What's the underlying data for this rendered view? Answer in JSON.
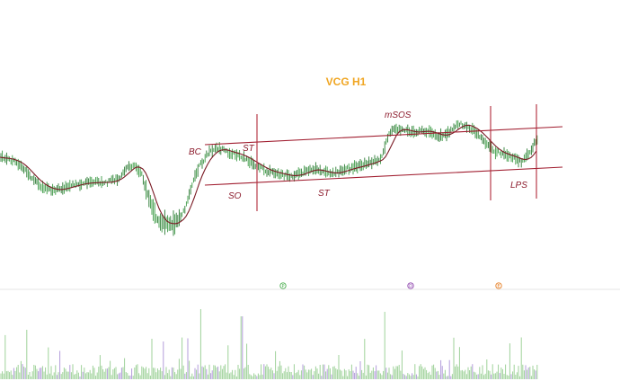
{
  "chart_data": {
    "type": "line",
    "title": "VCG H1",
    "xlabel": "",
    "ylabel": "",
    "grid": false,
    "colors": {
      "title": "#f0a623",
      "up_bar": "#3c9a45",
      "down_bar": "#2b7a33",
      "moving_average": "#7a1a24",
      "channel": "#a01c2e",
      "vertical_marker": "#b0283a",
      "annotation": "#8b1a2b",
      "volume_up": "#9fd29a",
      "volume_down": "#b39ddb",
      "separator": "#e6e6e6"
    },
    "annotations": [
      {
        "label": "BC"
      },
      {
        "label": "ST"
      },
      {
        "label": "SO"
      },
      {
        "label": "ST"
      },
      {
        "label": "mSOS"
      },
      {
        "label": "LPS"
      }
    ],
    "event_markers": [
      {
        "color": "#4caf50",
        "glyph": "P"
      },
      {
        "color": "#8e44ad",
        "glyph": "D"
      },
      {
        "color": "#e67e22",
        "glyph": "E"
      }
    ]
  }
}
